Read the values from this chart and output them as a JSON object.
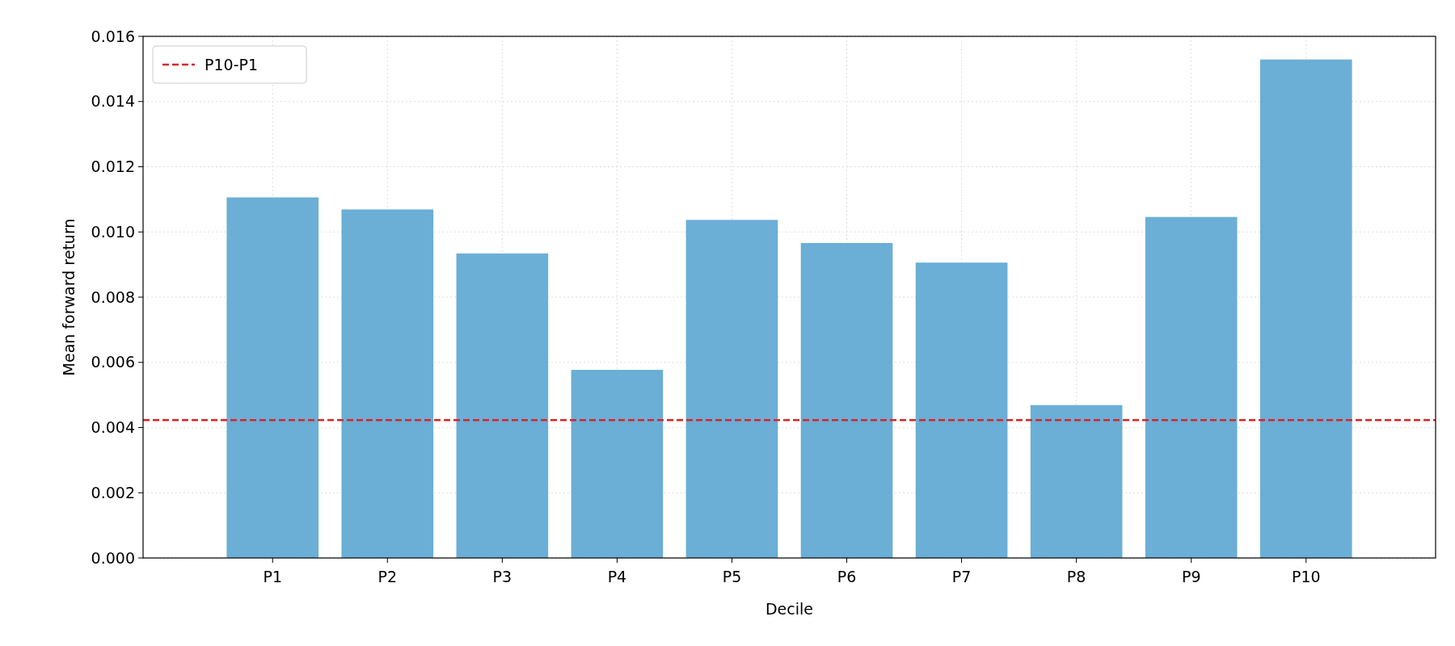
{
  "chart_data": {
    "type": "bar",
    "xlabel": "Decile",
    "ylabel": "Mean forward return",
    "categories": [
      "P1",
      "P2",
      "P3",
      "P4",
      "P5",
      "P6",
      "P7",
      "P8",
      "P9",
      "P10"
    ],
    "values": [
      0.01106,
      0.01069,
      0.00934,
      0.00577,
      0.01037,
      0.00966,
      0.00906,
      0.00469,
      0.01046,
      0.01529
    ],
    "color": "#6baed6",
    "ylim": [
      0,
      0.016
    ],
    "yticks": [
      {
        "value": 0,
        "label": "0.000"
      },
      {
        "value": 0.002,
        "label": "0.002"
      },
      {
        "value": 0.004,
        "label": "0.004"
      },
      {
        "value": 0.006,
        "label": "0.006"
      },
      {
        "value": 0.008,
        "label": "0.008"
      },
      {
        "value": 0.01,
        "label": "0.010"
      },
      {
        "value": 0.012,
        "label": "0.012"
      },
      {
        "value": 0.014,
        "label": "0.014"
      },
      {
        "value": 0.016,
        "label": "0.016"
      }
    ],
    "ref_lines": [
      {
        "axis": "y",
        "value": 0.00423,
        "label": "P10-P1",
        "color": "#d62728",
        "line_style": "dashed"
      }
    ],
    "grid": true,
    "legend": "top left"
  }
}
